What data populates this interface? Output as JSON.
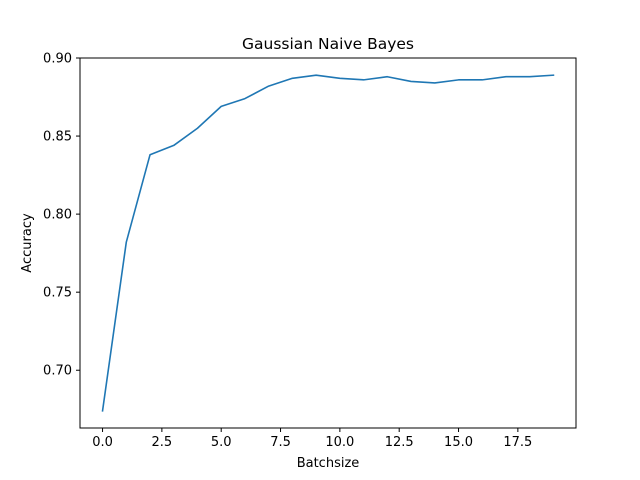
{
  "chart_data": {
    "type": "line",
    "title": "Gaussian Naive Bayes",
    "xlabel": "Batchsize",
    "ylabel": "Accuracy",
    "xlim": [
      -0.95,
      19.95
    ],
    "ylim": [
      0.663,
      0.9
    ],
    "xticks": [
      0.0,
      2.5,
      5.0,
      7.5,
      10.0,
      12.5,
      15.0,
      17.5
    ],
    "xtick_labels": [
      "0.0",
      "2.5",
      "5.0",
      "7.5",
      "10.0",
      "12.5",
      "15.0",
      "17.5"
    ],
    "yticks": [
      0.7,
      0.75,
      0.8,
      0.85,
      0.9
    ],
    "ytick_labels": [
      "0.70",
      "0.75",
      "0.80",
      "0.85",
      "0.90"
    ],
    "grid": false,
    "series": [
      {
        "color": "#1f77b4",
        "x": [
          0,
          1,
          2,
          3,
          4,
          5,
          6,
          7,
          8,
          9,
          10,
          11,
          12,
          13,
          14,
          15,
          16,
          17,
          18,
          19
        ],
        "y": [
          0.674,
          0.782,
          0.838,
          0.844,
          0.855,
          0.869,
          0.874,
          0.882,
          0.887,
          0.889,
          0.887,
          0.886,
          0.888,
          0.885,
          0.884,
          0.886,
          0.886,
          0.888,
          0.888,
          0.889
        ]
      }
    ]
  }
}
